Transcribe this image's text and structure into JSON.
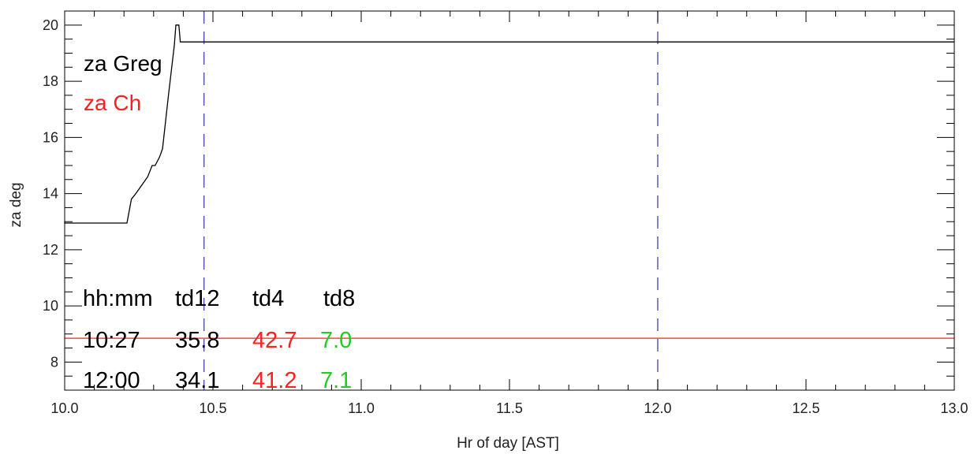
{
  "chart_data": {
    "type": "line",
    "xlabel": "Hr of day [AST]",
    "ylabel": "za deg",
    "xlim": [
      10.0,
      13.0
    ],
    "ylim": [
      7.0,
      20.5
    ],
    "x_ticks": [
      "10.0",
      "10.5",
      "11.0",
      "11.5",
      "12.0",
      "12.5",
      "13.0"
    ],
    "y_ticks": [
      "8",
      "10",
      "12",
      "14",
      "16",
      "18",
      "20"
    ],
    "grid": false,
    "legend": {
      "placement": "top-left",
      "entries": [
        {
          "label": "za Greg",
          "color": "#000000"
        },
        {
          "label": "za Ch",
          "color": "#ff2020"
        }
      ]
    },
    "series": [
      {
        "name": "za Greg",
        "color": "#000000",
        "points": [
          [
            10.0,
            13.0
          ],
          [
            10.0,
            12.95
          ],
          [
            10.21,
            12.95
          ],
          [
            10.225,
            13.8
          ],
          [
            10.24,
            14.0
          ],
          [
            10.26,
            14.3
          ],
          [
            10.28,
            14.6
          ],
          [
            10.295,
            15.0
          ],
          [
            10.305,
            15.0
          ],
          [
            10.32,
            15.3
          ],
          [
            10.33,
            15.6
          ],
          [
            10.35,
            17.5
          ],
          [
            10.37,
            19.3
          ],
          [
            10.375,
            20.0
          ],
          [
            10.385,
            20.0
          ],
          [
            10.39,
            19.4
          ],
          [
            13.0,
            19.4
          ]
        ]
      },
      {
        "name": "za Ch",
        "color": "#ff2020",
        "points": [
          [
            10.0,
            8.85
          ],
          [
            13.0,
            8.85
          ]
        ]
      }
    ],
    "vlines": [
      {
        "x": 10.47,
        "color": "#3333aa",
        "style": "dashed"
      },
      {
        "x": 12.0,
        "color": "#3333aa",
        "style": "dashed"
      }
    ],
    "annotation_table": {
      "header": [
        "hh:mm",
        "td12",
        "td4",
        "td8"
      ],
      "rows": [
        [
          "10:27",
          "35.8",
          "42.7",
          "7.0"
        ],
        [
          "12:00",
          "34.1",
          "41.2",
          "7.1"
        ]
      ],
      "column_colors": [
        "#000000",
        "#000000",
        "#ff2020",
        "#22cc22"
      ]
    }
  }
}
